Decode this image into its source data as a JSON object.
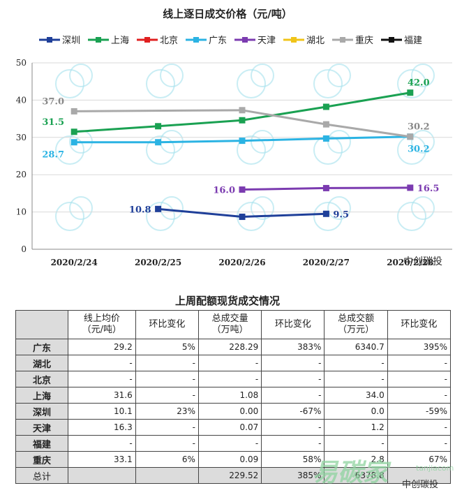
{
  "chart_data": {
    "type": "line",
    "title": "线上逐日成交价格（元/吨）",
    "categories": [
      "2020/2/24",
      "2020/2/25",
      "2020/2/26",
      "2020/2/27",
      "2020/2/28"
    ],
    "ylim": [
      0,
      50
    ],
    "yticks": [
      0,
      10,
      20,
      30,
      40,
      50
    ],
    "grid": true,
    "legend_position": "top",
    "series": [
      {
        "name": "深圳",
        "color": "#1f3f99",
        "values": [
          null,
          10.8,
          8.7,
          9.5,
          null
        ],
        "labels": [
          null,
          "10.8",
          null,
          "9.5",
          null
        ],
        "label_side": [
          "",
          "left",
          "",
          "right",
          ""
        ],
        "label_color": "#1f3f99"
      },
      {
        "name": "上海",
        "color": "#1aa152",
        "values": [
          31.5,
          33.0,
          34.6,
          38.2,
          42.0
        ],
        "labels": [
          "31.5",
          null,
          null,
          null,
          "42.0"
        ],
        "label_side": [
          "above",
          "",
          "",
          "",
          "above"
        ],
        "label_color": "#1aa152"
      },
      {
        "name": "北京",
        "color": "#e02020",
        "values": [
          null,
          null,
          null,
          null,
          null
        ],
        "labels": [
          null,
          null,
          null,
          null,
          null
        ],
        "label_side": [
          "",
          "",
          "",
          "",
          ""
        ],
        "label_color": "#e02020"
      },
      {
        "name": "广东",
        "color": "#2bb3e3",
        "values": [
          28.7,
          28.7,
          29.1,
          29.7,
          30.2
        ],
        "labels": [
          "28.7",
          null,
          null,
          null,
          "30.2"
        ],
        "label_side": [
          "below",
          "",
          "",
          "",
          "below"
        ],
        "label_color": "#2bb3e3"
      },
      {
        "name": "天津",
        "color": "#7b3bb0",
        "values": [
          null,
          null,
          16.0,
          16.4,
          16.5
        ],
        "labels": [
          null,
          null,
          "16.0",
          null,
          "16.5"
        ],
        "label_side": [
          "",
          "",
          "left",
          "",
          "right"
        ],
        "label_color": "#7b3bb0"
      },
      {
        "name": "湖北",
        "color": "#f0c419",
        "values": [
          null,
          null,
          null,
          null,
          null
        ],
        "labels": [
          null,
          null,
          null,
          null,
          null
        ],
        "label_side": [
          "",
          "",
          "",
          "",
          ""
        ],
        "label_color": "#f0c419"
      },
      {
        "name": "重庆",
        "color": "#a9a9a9",
        "values": [
          37.0,
          null,
          37.3,
          33.5,
          30.2
        ],
        "labels": [
          "37.0",
          null,
          null,
          null,
          "30.2"
        ],
        "label_side": [
          "above",
          "",
          "",
          "",
          "above"
        ],
        "label_color": "#888888"
      },
      {
        "name": "福建",
        "color": "#111111",
        "values": [
          null,
          null,
          null,
          null,
          null
        ],
        "labels": [
          null,
          null,
          null,
          null,
          null
        ],
        "label_side": [
          "",
          "",
          "",
          "",
          ""
        ],
        "label_color": "#111111"
      }
    ]
  },
  "watermark": {
    "chart_brand": "中创碳投",
    "table_brand": "中创碳投",
    "site_cn": "易碳家",
    "site_en": "tanjiacom"
  },
  "table": {
    "title": "上周配额现货成交情况",
    "headers": [
      {
        "line1": "线上均价",
        "line2": "（元/吨）"
      },
      {
        "line1": "环比变化",
        "line2": ""
      },
      {
        "line1": "总成交量",
        "line2": "（万吨）"
      },
      {
        "line1": "环比变化",
        "line2": ""
      },
      {
        "line1": "总成交额",
        "line2": "（万元）"
      },
      {
        "line1": "环比变化",
        "line2": ""
      }
    ],
    "rows": [
      {
        "region": "广东",
        "cells": [
          "29.2",
          "5%",
          "228.29",
          "383%",
          "6340.7",
          "395%"
        ]
      },
      {
        "region": "湖北",
        "cells": [
          "-",
          "-",
          "-",
          "-",
          "-",
          "-"
        ]
      },
      {
        "region": "北京",
        "cells": [
          "-",
          "-",
          "-",
          "-",
          "-",
          "-"
        ]
      },
      {
        "region": "上海",
        "cells": [
          "31.6",
          "-",
          "1.08",
          "-",
          "34.0",
          "-"
        ]
      },
      {
        "region": "深圳",
        "cells": [
          "10.1",
          "23%",
          "0.00",
          "-67%",
          "0.0",
          "-59%"
        ]
      },
      {
        "region": "天津",
        "cells": [
          "16.3",
          "-",
          "0.07",
          "-",
          "1.2",
          "-"
        ]
      },
      {
        "region": "福建",
        "cells": [
          "-",
          "-",
          "-",
          "-",
          "-",
          "-"
        ]
      },
      {
        "region": "重庆",
        "cells": [
          "33.1",
          "6%",
          "0.09",
          "58%",
          "2.8",
          "67%"
        ]
      }
    ],
    "total": {
      "region": "总计",
      "cells": [
        "",
        "",
        "229.52",
        "385%",
        "6378.8",
        ""
      ]
    }
  }
}
